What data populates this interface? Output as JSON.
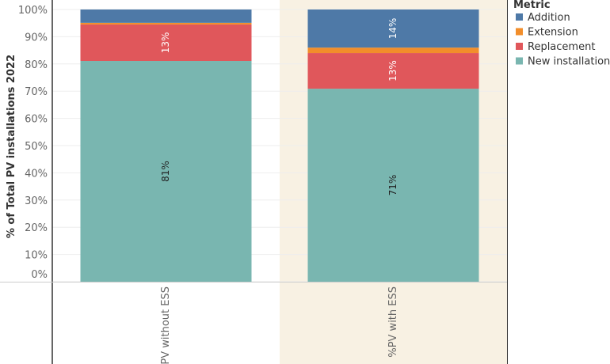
{
  "chart_data": {
    "type": "bar",
    "stacked": true,
    "ylabel": "% of Total PV installations 2022",
    "ylim": [
      0,
      100
    ],
    "yticks": [
      "0%",
      "10%",
      "20%",
      "30%",
      "40%",
      "50%",
      "60%",
      "70%",
      "80%",
      "90%",
      "100%"
    ],
    "categories": [
      "%PV without ESS",
      "%PV with ESS"
    ],
    "highlighted_category": "%PV with ESS",
    "grid": true,
    "legend_title": "Metric",
    "legend_position": "right",
    "series": [
      {
        "name": "New installation",
        "color": "#79b6b0",
        "values": [
          81.1,
          70.9
        ],
        "labels": [
          "81%",
          "71%"
        ],
        "label_color": "#222"
      },
      {
        "name": "Replacement",
        "color": "#e0575b",
        "values": [
          13.4,
          13.1
        ],
        "labels": [
          "13%",
          "13%"
        ],
        "label_color": "#fff"
      },
      {
        "name": "Extension",
        "color": "#f28e2b",
        "values": [
          0.6,
          2.0
        ],
        "labels": [
          "",
          ""
        ],
        "label_color": "#fff"
      },
      {
        "name": "Addition",
        "color": "#4e79a7",
        "values": [
          4.9,
          14.0
        ],
        "labels": [
          "",
          "14%"
        ],
        "label_color": "#fff"
      }
    ]
  }
}
